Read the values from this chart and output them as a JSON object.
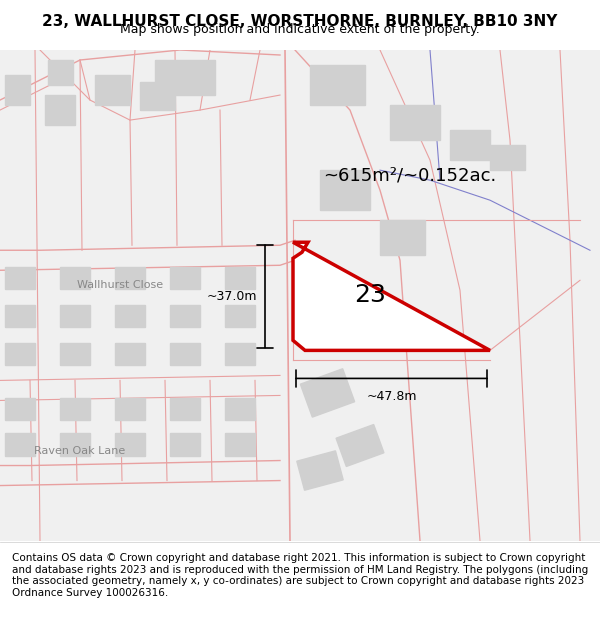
{
  "title": "23, WALLHURST CLOSE, WORSTHORNE, BURNLEY, BB10 3NY",
  "subtitle": "Map shows position and indicative extent of the property.",
  "footer": "Contains OS data © Crown copyright and database right 2021. This information is subject to Crown copyright and database rights 2023 and is reproduced with the permission of HM Land Registry. The polygons (including the associated geometry, namely x, y co-ordinates) are subject to Crown copyright and database rights 2023 Ordnance Survey 100026316.",
  "area_label": "~615m²/~0.152ac.",
  "street_label1": "Wallhurst Close",
  "street_label2": "Raven Oak Lane",
  "dim_label_h": "~37.0m",
  "dim_label_w": "~47.8m",
  "plot_number": "23",
  "bg_color": "#ffffff",
  "map_bg": "#f8f8f8",
  "road_color": "#e8a0a0",
  "building_color": "#d8d8d8",
  "plot_outline_color": "#cc0000",
  "dim_line_color": "#000000",
  "title_fontsize": 11,
  "subtitle_fontsize": 9,
  "footer_fontsize": 7.5,
  "street_label_fontsize": 8,
  "area_label_fontsize": 13,
  "plot_number_fontsize": 18
}
